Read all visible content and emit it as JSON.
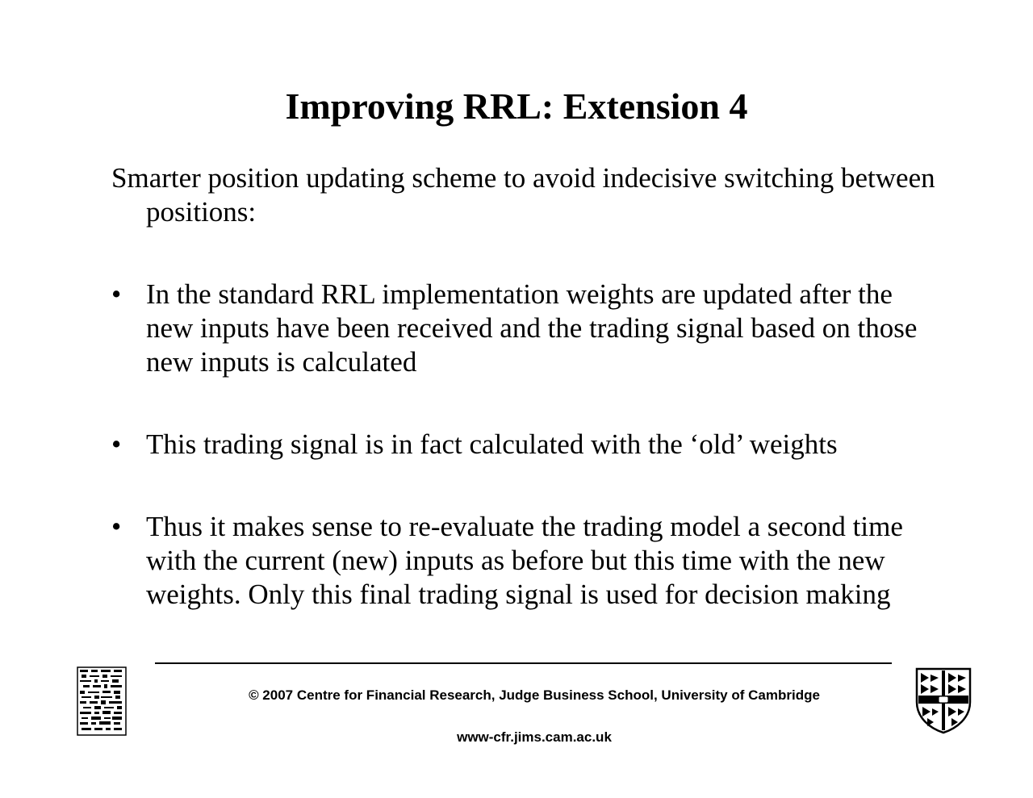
{
  "slide": {
    "title": "Improving RRL: Extension 4",
    "intro": "Smarter position updating scheme to avoid indecisive switching between positions:",
    "bullets": [
      "In the standard RRL implementation weights are updated after the new inputs have been received and the trading signal based on those new inputs is calculated",
      "This trading signal is in fact calculated with the ‘old’ weights",
      "Thus it makes sense to re-evaluate the trading model a second time with the current (new) inputs as before but this time with the new weights. Only this final trading signal is used for decision making"
    ],
    "bullet_symbol": "•"
  },
  "footer": {
    "copyright": "© 2007 Centre for Financial Research,  Judge Business School,  University of Cambridge",
    "url": "www-cfr.jims.cam.ac.uk",
    "left_logo_icon": "cfr-logo-icon",
    "right_logo_icon": "cambridge-crest-icon"
  }
}
